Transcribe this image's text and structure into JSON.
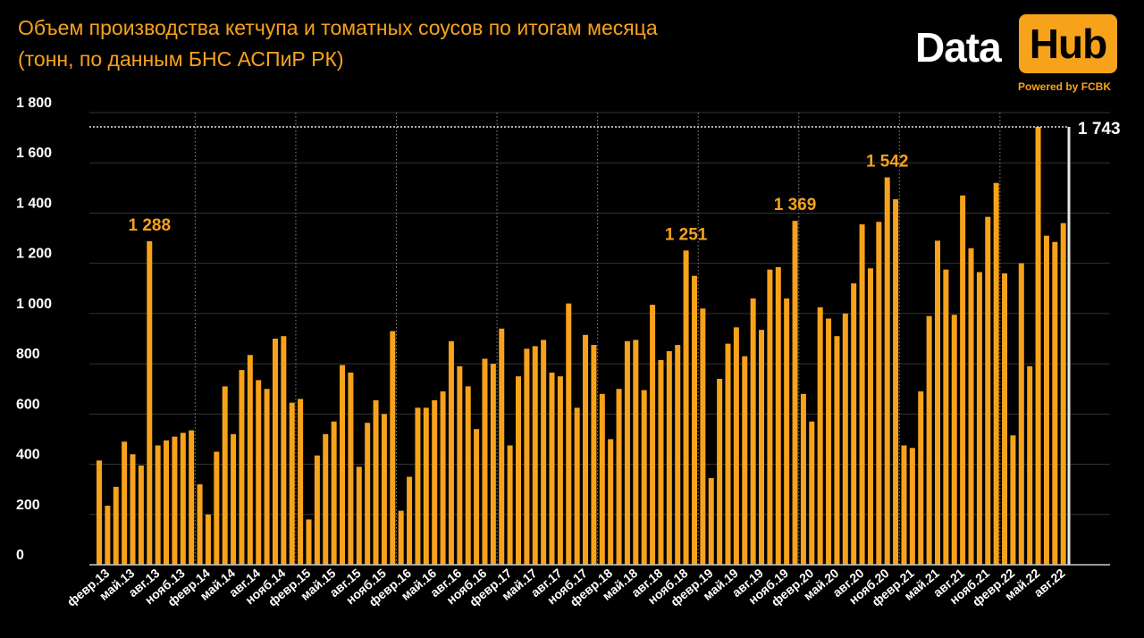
{
  "title_line1": "Объем производства кетчупа и томатных соусов по итогам месяца",
  "title_line2": "(тонн, по данным БНС АСПиР РК)",
  "logo": {
    "data": "Data",
    "hub": "Hub",
    "powered": "Powered by FCBK"
  },
  "colors": {
    "bar": "#f7a21b",
    "accent": "#f7a21b",
    "background": "#000000",
    "text": "#ffffff",
    "grid": "#333333",
    "max_line": "#e6e6e6"
  },
  "chart_data": {
    "type": "bar",
    "title": "Объем производства кетчупа и томатных соусов по итогам месяца (тонн, по данным БНС АСПиР РК)",
    "xlabel": "",
    "ylabel": "",
    "ylim": [
      0,
      1800
    ],
    "yticks": [
      0,
      200,
      400,
      600,
      800,
      1000,
      1200,
      1400,
      1600,
      1800
    ],
    "ytick_labels": [
      "0",
      "200",
      "400",
      "600",
      "800",
      "1 000",
      "1 200",
      "1 400",
      "1 600",
      "1 800"
    ],
    "x_tick_labels": [
      "февр.13",
      "май.13",
      "авг.13",
      "нояб.13",
      "февр.14",
      "май.14",
      "авг.14",
      "нояб.14",
      "февр.15",
      "май.15",
      "авг.15",
      "нояб.15",
      "февр.16",
      "май.16",
      "авг.16",
      "нояб.16",
      "февр.17",
      "май.17",
      "авг.17",
      "нояб.17",
      "февр.18",
      "май.18",
      "авг.18",
      "нояб.18",
      "февр.19",
      "май.19",
      "авг.19",
      "нояб.19",
      "февр.20",
      "май.20",
      "авг.20",
      "нояб.20",
      "февр.21",
      "май.21",
      "авг.21",
      "нояб.21",
      "февр.22",
      "май.22",
      "авг.22"
    ],
    "start_month": "янв.13",
    "values": [
      415,
      235,
      310,
      490,
      440,
      395,
      1288,
      475,
      495,
      510,
      525,
      535,
      320,
      200,
      450,
      710,
      520,
      775,
      835,
      735,
      700,
      900,
      910,
      645,
      660,
      180,
      435,
      520,
      570,
      795,
      765,
      390,
      565,
      655,
      600,
      930,
      215,
      350,
      625,
      625,
      655,
      690,
      890,
      790,
      710,
      540,
      820,
      800,
      940,
      475,
      750,
      860,
      870,
      895,
      765,
      750,
      1040,
      625,
      915,
      875,
      680,
      500,
      700,
      890,
      895,
      695,
      1035,
      815,
      850,
      875,
      1251,
      1150,
      1020,
      345,
      740,
      880,
      945,
      830,
      1060,
      935,
      1175,
      1185,
      1060,
      1369,
      680,
      570,
      1025,
      980,
      910,
      1000,
      1120,
      1355,
      1180,
      1365,
      1542,
      1455,
      475,
      465,
      690,
      990,
      1290,
      1175,
      995,
      1470,
      1260,
      1165,
      1385,
      1520,
      1160,
      515,
      1200,
      790,
      1743,
      1310,
      1285,
      1360
    ],
    "annotations": [
      {
        "index": 6,
        "label": "1 288"
      },
      {
        "index": 70,
        "label": "1 251"
      },
      {
        "index": 83,
        "label": "1 369"
      },
      {
        "index": 94,
        "label": "1 542"
      }
    ],
    "max_reference": {
      "index": 112,
      "value": 1743,
      "label": "1 743"
    },
    "year_separators_before": [
      "янв.14",
      "янв.15",
      "янв.16",
      "янв.17",
      "янв.18",
      "янв.19",
      "янв.20",
      "янв.21",
      "янв.22"
    ],
    "grid": true,
    "legend": "none"
  }
}
